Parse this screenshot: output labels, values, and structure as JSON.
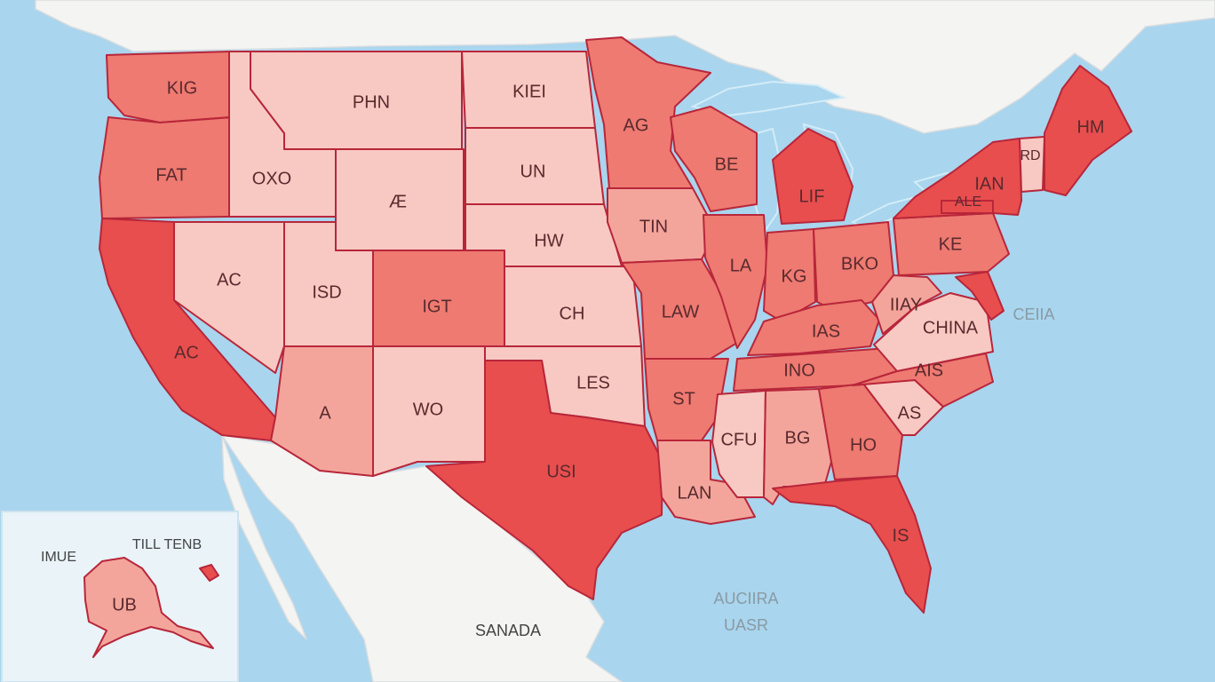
{
  "colors": {
    "water": "#a9d5ee",
    "land": "#f4f4f2",
    "light": "#f7c9c2",
    "mid": "#f3a59c",
    "dark": "#ee7a71",
    "deep": "#e84e4e",
    "border": "#b8263a"
  },
  "states": [
    {
      "id": "wa",
      "label": "KIG",
      "shade": "dark"
    },
    {
      "id": "or",
      "label": "FAT",
      "shade": "dark"
    },
    {
      "id": "ca",
      "label": "AC",
      "shade": "deep"
    },
    {
      "id": "id",
      "label": "OXO",
      "shade": "light"
    },
    {
      "id": "mt",
      "label": "PHN",
      "shade": "light"
    },
    {
      "id": "nv",
      "label": "AC",
      "shade": "light"
    },
    {
      "id": "ut",
      "label": "ISD",
      "shade": "light"
    },
    {
      "id": "wy",
      "label": "Æ",
      "shade": "light"
    },
    {
      "id": "co",
      "label": "IGT",
      "shade": "dark"
    },
    {
      "id": "az",
      "label": "A",
      "shade": "mid"
    },
    {
      "id": "nm",
      "label": "WO",
      "shade": "light"
    },
    {
      "id": "nd",
      "label": "KIEI",
      "shade": "light"
    },
    {
      "id": "sd",
      "label": "UN",
      "shade": "light"
    },
    {
      "id": "ne",
      "label": "HW",
      "shade": "light"
    },
    {
      "id": "ks",
      "label": "CH",
      "shade": "light"
    },
    {
      "id": "ok",
      "label": "LES",
      "shade": "light"
    },
    {
      "id": "tx",
      "label": "USI",
      "shade": "deep"
    },
    {
      "id": "mn",
      "label": "AG",
      "shade": "dark"
    },
    {
      "id": "ia",
      "label": "TIN",
      "shade": "mid"
    },
    {
      "id": "mo",
      "label": "LAW",
      "shade": "dark"
    },
    {
      "id": "ar",
      "label": "ST",
      "shade": "dark"
    },
    {
      "id": "la",
      "label": "LAN",
      "shade": "mid"
    },
    {
      "id": "wi",
      "label": "BE",
      "shade": "dark"
    },
    {
      "id": "il",
      "label": "LA",
      "shade": "dark"
    },
    {
      "id": "mi",
      "label": "LIF",
      "shade": "deep"
    },
    {
      "id": "in",
      "label": "KG",
      "shade": "dark"
    },
    {
      "id": "oh",
      "label": "BKO",
      "shade": "dark"
    },
    {
      "id": "ky",
      "label": "IAS",
      "shade": "dark"
    },
    {
      "id": "tn",
      "label": "INO",
      "shade": "dark"
    },
    {
      "id": "ms",
      "label": "CFU",
      "shade": "light"
    },
    {
      "id": "al",
      "label": "BG",
      "shade": "mid"
    },
    {
      "id": "ga",
      "label": "HO",
      "shade": "dark"
    },
    {
      "id": "fl",
      "label": "IS",
      "shade": "deep"
    },
    {
      "id": "sc",
      "label": "AS",
      "shade": "light"
    },
    {
      "id": "nc",
      "label": "AIS",
      "shade": "dark"
    },
    {
      "id": "va",
      "label": "CHINA",
      "shade": "light"
    },
    {
      "id": "wv",
      "label": "IIAY",
      "shade": "mid"
    },
    {
      "id": "pa",
      "label": "KE",
      "shade": "dark"
    },
    {
      "id": "ny",
      "label": "IAN",
      "shade": "deep"
    },
    {
      "id": "ny2",
      "label": "ALE",
      "shade": "deep"
    },
    {
      "id": "vt",
      "label": "RD",
      "shade": "light"
    },
    {
      "id": "me",
      "label": "HM",
      "shade": "deep"
    },
    {
      "id": "md",
      "label": "",
      "shade": "deep"
    }
  ],
  "places": {
    "canada_sea": "CEIIA",
    "mexico": "SANADA",
    "gulf_line1": "AUCIIRA",
    "gulf_line2": "UASR",
    "inset_left": "IMUE",
    "inset_right": "TILL TENB",
    "inset_state": "UB"
  }
}
